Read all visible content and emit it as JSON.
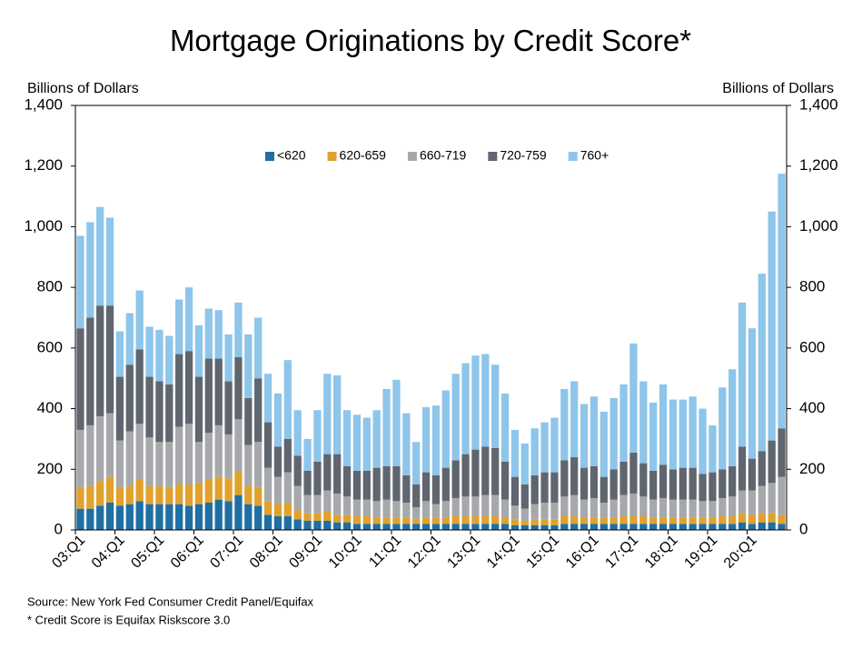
{
  "chart_data": {
    "type": "stacked_bar",
    "title": "Mortgage Originations by Credit Score*",
    "ylabel": "Billions of Dollars",
    "y2label": "Billions of Dollars",
    "source": "Source: New York Fed Consumer Credit Panel/Equifax",
    "note": "* Credit Score is Equifax Riskscore 3.0",
    "legend": "top",
    "categories": [
      "03:Q1",
      null,
      null,
      null,
      "04:Q1",
      null,
      null,
      null,
      "05:Q1",
      null,
      null,
      null,
      "06:Q1",
      null,
      null,
      null,
      "07:Q1",
      null,
      null,
      null,
      "08:Q1",
      null,
      null,
      null,
      "09:Q1",
      null,
      null,
      null,
      "10:Q1",
      null,
      null,
      null,
      "11:Q1",
      null,
      null,
      null,
      "12:Q1",
      null,
      null,
      null,
      "13:Q1",
      null,
      null,
      null,
      "14:Q1",
      null,
      null,
      null,
      "15:Q1",
      null,
      null,
      null,
      "16:Q1",
      null,
      null,
      null,
      "17:Q1",
      null,
      null,
      null,
      "18:Q1",
      null,
      null,
      null,
      "19:Q1",
      null,
      null,
      null,
      "20:Q1",
      null,
      null,
      null
    ],
    "series": [
      {
        "name": "<620",
        "color": "#1f6fa3",
        "values": [
          70,
          70,
          80,
          90,
          80,
          85,
          95,
          85,
          85,
          85,
          85,
          80,
          85,
          90,
          100,
          95,
          115,
          85,
          80,
          50,
          45,
          45,
          35,
          30,
          30,
          30,
          25,
          25,
          20,
          20,
          20,
          20,
          20,
          20,
          20,
          20,
          20,
          20,
          20,
          20,
          20,
          20,
          20,
          20,
          15,
          15,
          15,
          15,
          15,
          20,
          20,
          20,
          20,
          20,
          20,
          20,
          20,
          20,
          20,
          20,
          20,
          20,
          20,
          20,
          20,
          20,
          20,
          25,
          20,
          25,
          25,
          20
        ]
      },
      {
        "name": "620-659",
        "color": "#e0a12f",
        "values": [
          70,
          75,
          80,
          85,
          60,
          60,
          70,
          60,
          60,
          55,
          65,
          70,
          70,
          75,
          75,
          75,
          80,
          60,
          60,
          45,
          40,
          45,
          30,
          25,
          25,
          30,
          25,
          25,
          25,
          25,
          20,
          20,
          20,
          20,
          15,
          20,
          20,
          20,
          25,
          25,
          25,
          25,
          25,
          20,
          20,
          15,
          20,
          20,
          20,
          25,
          25,
          20,
          20,
          20,
          20,
          25,
          25,
          25,
          20,
          20,
          20,
          20,
          20,
          20,
          20,
          25,
          25,
          30,
          30,
          30,
          30,
          30
        ]
      },
      {
        "name": "660-719",
        "color": "#a7a8ab",
        "values": [
          190,
          200,
          215,
          210,
          155,
          180,
          185,
          160,
          145,
          150,
          190,
          200,
          135,
          155,
          170,
          145,
          170,
          135,
          150,
          110,
          90,
          100,
          80,
          60,
          60,
          70,
          70,
          60,
          55,
          55,
          55,
          60,
          55,
          50,
          40,
          55,
          45,
          55,
          60,
          65,
          65,
          70,
          70,
          60,
          45,
          40,
          50,
          55,
          55,
          65,
          70,
          60,
          65,
          50,
          60,
          70,
          75,
          65,
          60,
          65,
          60,
          60,
          60,
          55,
          55,
          60,
          65,
          75,
          80,
          90,
          100,
          125
        ]
      },
      {
        "name": "720-759",
        "color": "#60666f",
        "values": [
          335,
          355,
          365,
          355,
          210,
          220,
          245,
          200,
          200,
          190,
          240,
          240,
          215,
          245,
          220,
          175,
          205,
          155,
          210,
          150,
          100,
          110,
          100,
          80,
          110,
          120,
          130,
          100,
          95,
          95,
          110,
          110,
          115,
          90,
          75,
          95,
          95,
          110,
          125,
          140,
          155,
          160,
          155,
          125,
          95,
          80,
          95,
          100,
          100,
          120,
          125,
          105,
          105,
          85,
          100,
          110,
          135,
          110,
          95,
          110,
          100,
          105,
          105,
          90,
          95,
          95,
          100,
          145,
          105,
          115,
          140,
          160
        ]
      },
      {
        "name": "760+",
        "color": "#8ec5ea",
        "values": [
          305,
          315,
          325,
          290,
          150,
          170,
          195,
          165,
          170,
          160,
          180,
          210,
          170,
          165,
          160,
          155,
          180,
          210,
          200,
          160,
          175,
          260,
          150,
          105,
          170,
          265,
          260,
          185,
          185,
          175,
          190,
          255,
          285,
          205,
          140,
          215,
          230,
          255,
          285,
          300,
          310,
          305,
          275,
          225,
          155,
          135,
          155,
          165,
          180,
          235,
          250,
          210,
          230,
          215,
          235,
          255,
          360,
          270,
          225,
          265,
          230,
          225,
          235,
          215,
          155,
          270,
          320,
          475,
          430,
          585,
          755,
          840
        ]
      }
    ],
    "ylim": [
      0,
      1400
    ],
    "yticks": [
      0,
      200,
      400,
      600,
      800,
      {
        "value": 1000,
        "label": "1,000"
      },
      {
        "value": 1200,
        "label": "1,200"
      },
      {
        "value": 1400,
        "label": "1,400"
      }
    ],
    "y2lim": [
      0,
      1400
    ],
    "y2ticks": [
      0,
      200,
      400,
      600,
      800,
      {
        "value": 1000,
        "label": "1,000"
      },
      {
        "value": 1200,
        "label": "1,200"
      },
      {
        "value": 1400,
        "label": "1,400"
      }
    ]
  }
}
